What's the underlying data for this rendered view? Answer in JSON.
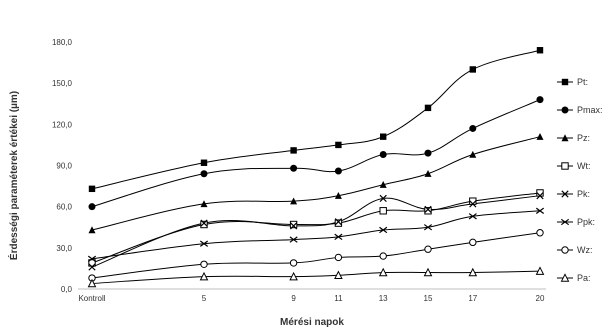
{
  "chart_data": {
    "type": "line",
    "xlabel": "Mérési napok",
    "ylabel": "Érdességi paraméterek értékei (µm)",
    "categories": [
      "Kontroll",
      "5",
      "9",
      "11",
      "13",
      "15",
      "17",
      "20"
    ],
    "x": [
      0,
      5,
      9,
      11,
      13,
      15,
      17,
      20
    ],
    "ylim": [
      0,
      180
    ],
    "yticks": [
      "0,0",
      "30,0",
      "60,0",
      "90,0",
      "120,0",
      "150,0",
      "180,0"
    ],
    "ytick_values": [
      0,
      30,
      60,
      90,
      120,
      150,
      180
    ],
    "grid": false,
    "legend_position": "right",
    "line_color": "#000000",
    "series": [
      {
        "name": "Pt:",
        "marker": "square-filled",
        "values": [
          73,
          92,
          101,
          105,
          111,
          132,
          160,
          174
        ]
      },
      {
        "name": "Pmax:",
        "marker": "circle-filled",
        "values": [
          60,
          84,
          88,
          86,
          98,
          99,
          117,
          138
        ]
      },
      {
        "name": "Pz:",
        "marker": "triangle-filled",
        "values": [
          43,
          62,
          64,
          68,
          76,
          84,
          98,
          111
        ]
      },
      {
        "name": "Wt:",
        "marker": "square-open",
        "values": [
          19,
          47,
          47,
          48,
          57,
          57,
          64,
          70
        ]
      },
      {
        "name": "Pk:",
        "marker": "x",
        "values": [
          16,
          48,
          46,
          49,
          66,
          58,
          62,
          68
        ]
      },
      {
        "name": "Ppk:",
        "marker": "cross-x",
        "values": [
          22,
          33,
          36,
          38,
          43,
          45,
          53,
          57
        ]
      },
      {
        "name": "Wz:",
        "marker": "circle-open",
        "values": [
          8,
          18,
          19,
          23,
          24,
          29,
          34,
          41
        ]
      },
      {
        "name": "Pa:",
        "marker": "triangle-open",
        "values": [
          4,
          9,
          9,
          10,
          12,
          12,
          12,
          13
        ]
      }
    ]
  }
}
